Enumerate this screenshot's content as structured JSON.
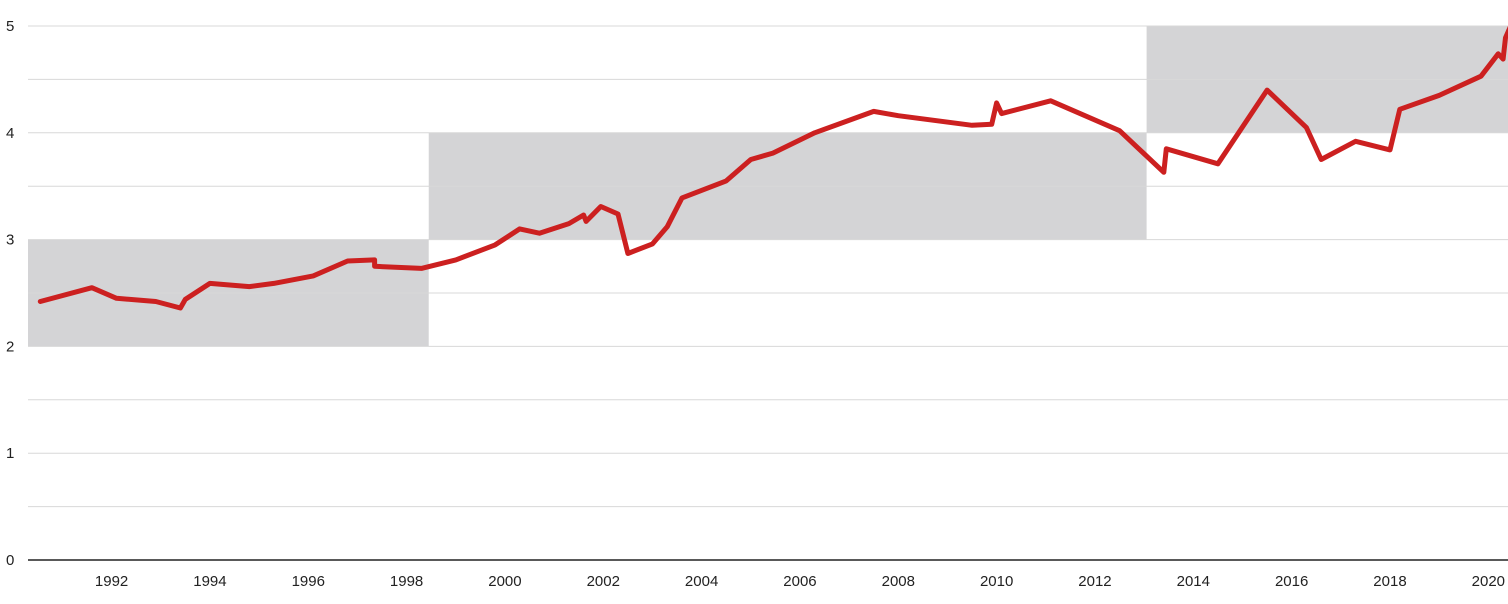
{
  "chart_data": {
    "type": "line",
    "title": "",
    "xlabel": "",
    "ylabel": "",
    "xlim": [
      1990.3,
      2020.4
    ],
    "ylim": [
      0,
      5
    ],
    "x_ticks": [
      1992,
      1994,
      1996,
      1998,
      2000,
      2002,
      2004,
      2006,
      2008,
      2010,
      2012,
      2014,
      2016,
      2018,
      2020
    ],
    "x_tick_labels": [
      "1992",
      "1994",
      "1996",
      "1998",
      "2000",
      "2002",
      "2004",
      "2006",
      "2008",
      "2010",
      "2012",
      "2014",
      "2016",
      "2018",
      "2020"
    ],
    "y_ticks": [
      0,
      1,
      2,
      3,
      4,
      5
    ],
    "y_tick_labels": [
      "0",
      "1",
      "2",
      "3",
      "4",
      "5"
    ],
    "y_minor_gridlines": [
      0.5,
      1.5,
      2.5,
      3.5,
      4.5
    ],
    "grid": true,
    "shaded_bands": [
      {
        "x_start": 1990.3,
        "x_end": 1998.45,
        "y_low": 2,
        "y_high": 3
      },
      {
        "x_start": 1998.45,
        "x_end": 2013.05,
        "y_low": 3,
        "y_high": 4
      },
      {
        "x_start": 2013.05,
        "x_end": 2020.4,
        "y_low": 4,
        "y_high": 5
      }
    ],
    "line_color": "#cc2020",
    "band_color": "#d4d4d6",
    "series": [
      {
        "x": [
          1990.55,
          1991.6,
          1992.1,
          1992.9,
          1993.4,
          1993.5,
          1994.0,
          1994.8,
          1995.3,
          1996.1,
          1996.8,
          1997.35,
          1997.35,
          1998.3,
          1999.0,
          1999.8,
          2000.3,
          2000.7,
          2001.3,
          2001.6,
          2001.65,
          2001.95,
          2002.3,
          2002.5,
          2003.0,
          2003.3,
          2003.6,
          2004.5,
          2005.0,
          2005.45,
          2006.3,
          2007.5,
          2008.0,
          2009.5,
          2009.9,
          2010.0,
          2010.1,
          2011.1,
          2012.5,
          2013.4,
          2013.45,
          2014.5,
          2015.5,
          2016.3,
          2016.6,
          2017.3,
          2018.0,
          2018.2,
          2019.0,
          2019.85,
          2020.2,
          2020.3,
          2020.35,
          2020.55,
          2021.0
        ],
        "y": [
          2.42,
          2.55,
          2.45,
          2.42,
          2.36,
          2.44,
          2.59,
          2.56,
          2.59,
          2.66,
          2.8,
          2.81,
          2.75,
          2.73,
          2.81,
          2.95,
          3.1,
          3.06,
          3.15,
          3.23,
          3.17,
          3.31,
          3.24,
          2.87,
          2.96,
          3.12,
          3.39,
          3.55,
          3.75,
          3.81,
          4.0,
          4.2,
          4.16,
          4.07,
          4.08,
          4.28,
          4.18,
          4.3,
          4.02,
          3.63,
          3.85,
          3.71,
          4.4,
          4.05,
          3.75,
          3.92,
          3.84,
          4.22,
          4.35,
          4.53,
          4.74,
          4.69,
          4.89,
          5.1,
          5.06
        ]
      }
    ]
  }
}
